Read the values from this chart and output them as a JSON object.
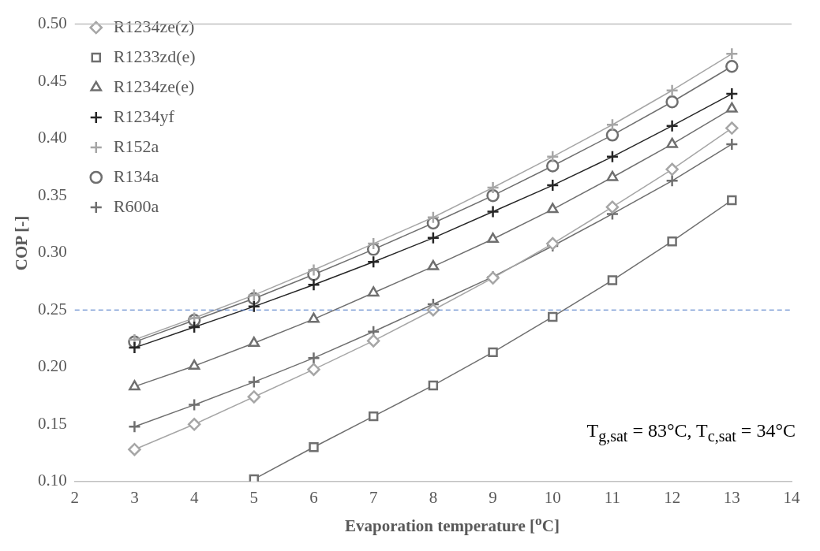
{
  "chart_data": {
    "type": "line",
    "xlabel": "Evaporation temperature [$^{o}$C]",
    "ylabel": "COP [-]",
    "x": [
      3,
      4,
      5,
      6,
      7,
      8,
      9,
      10,
      11,
      12,
      13
    ],
    "xlim": [
      2,
      14
    ],
    "xticks": [
      2,
      3,
      4,
      5,
      6,
      7,
      8,
      9,
      10,
      11,
      12,
      13,
      14
    ],
    "ylim": [
      0.1,
      0.5
    ],
    "yticks": [
      {
        "value": 0.1,
        "label": "0.10"
      },
      {
        "value": 0.15,
        "label": "0.15"
      },
      {
        "value": 0.2,
        "label": "0.20"
      },
      {
        "value": 0.25,
        "label": "0.25"
      },
      {
        "value": 0.3,
        "label": "0.30"
      },
      {
        "value": 0.35,
        "label": "0.35"
      },
      {
        "value": 0.4,
        "label": "0.40"
      },
      {
        "value": 0.45,
        "label": "0.45"
      },
      {
        "value": 0.5,
        "label": "0.50"
      }
    ],
    "grid": false,
    "legend": "top left",
    "line_style": "solid",
    "series": [
      {
        "name": "R1234ze(z)",
        "color": "#a6a6a6",
        "marker": "diamond",
        "values": [
          0.128,
          0.15,
          0.174,
          0.198,
          0.223,
          0.25,
          0.278,
          0.308,
          0.34,
          0.373,
          0.409
        ]
      },
      {
        "name": "R1233zd(e)",
        "color": "#6f6f6f",
        "marker": "square",
        "values": [
          null,
          null,
          0.102,
          0.13,
          0.157,
          0.184,
          0.213,
          0.244,
          0.276,
          0.31,
          0.346
        ]
      },
      {
        "name": "R1234ze(e)",
        "color": "#6f6f6f",
        "marker": "triangle",
        "values": [
          0.183,
          0.201,
          0.221,
          0.242,
          0.265,
          0.288,
          0.312,
          0.338,
          0.366,
          0.395,
          0.426
        ]
      },
      {
        "name": "R1234yf",
        "color": "#262626",
        "marker": "cross",
        "values": [
          0.217,
          0.235,
          0.253,
          0.272,
          0.292,
          0.313,
          0.336,
          0.359,
          0.384,
          0.411,
          0.439
        ]
      },
      {
        "name": "R152a",
        "color": "#a6a6a6",
        "marker": "cross",
        "values": [
          0.224,
          0.243,
          0.263,
          0.285,
          0.308,
          0.331,
          0.357,
          0.384,
          0.412,
          0.442,
          0.474
        ]
      },
      {
        "name": "R134a",
        "color": "#6f6f6f",
        "marker": "circle",
        "values": [
          0.222,
          0.241,
          0.26,
          0.281,
          0.303,
          0.326,
          0.35,
          0.376,
          0.403,
          0.432,
          0.463
        ]
      },
      {
        "name": "R600a",
        "color": "#6f6f6f",
        "marker": "cross",
        "values": [
          0.148,
          0.167,
          0.187,
          0.208,
          0.231,
          0.255,
          0.279,
          0.306,
          0.334,
          0.363,
          0.395
        ]
      }
    ],
    "ref_lines": [
      {
        "axis": "y",
        "value": 0.25,
        "color": "#4472c4",
        "line_style": "dashed"
      }
    ],
    "annotations": [
      "T$_{g,sat}$ = 83°C, T$_{c,sat}$ = 34°C"
    ]
  }
}
